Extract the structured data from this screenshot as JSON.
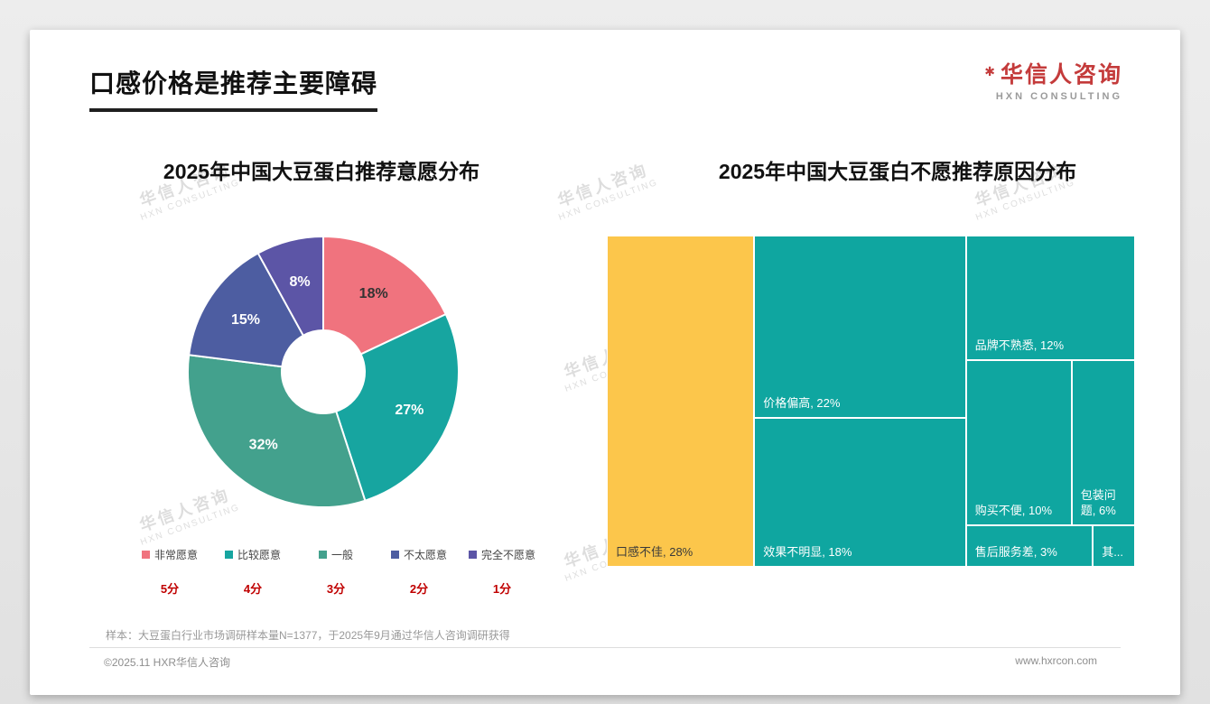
{
  "page": {
    "title": "口感价格是推荐主要障碍",
    "logo": {
      "mark": "✱",
      "cn": "华信人咨询",
      "en": "HXN CONSULTING"
    },
    "watermark": {
      "line1": "华信人咨询",
      "line2": "HXN CONSULTING"
    },
    "footnote": "样本：大豆蛋白行业市场调研样本量N=1377，于2025年9月通过华信人咨询调研获得",
    "footer": {
      "left": "©2025.11 HXR华信人咨询",
      "right": "www.hxrcon.com"
    }
  },
  "colors": {
    "accent_red": "#C00000",
    "logo_red": "#C43B3B",
    "title_underline": "#1F1F1F",
    "page_bg": "#E7E7E7",
    "card_bg": "#FFFFFF",
    "treemap_teal": "#0FA6A0",
    "treemap_yellow": "#FCC64B",
    "muted_text": "#8E8E8E"
  },
  "chart_data": [
    {
      "type": "pie",
      "subtype": "donut",
      "title": "2025年中国大豆蛋白推荐意愿分布",
      "categories": [
        "非常愿意",
        "比较愿意",
        "一般",
        "不太愿意",
        "完全不愿意"
      ],
      "values": [
        18,
        27,
        32,
        15,
        8
      ],
      "value_labels": [
        "18%",
        "27%",
        "32%",
        "15%",
        "8%"
      ],
      "slice_colors": [
        "#F0737E",
        "#17A5A0",
        "#43A18D",
        "#4D5DA1",
        "#5C55A6"
      ],
      "value_label_colors": [
        "#333333",
        "#ffffff",
        "#ffffff",
        "#ffffff",
        "#ffffff"
      ],
      "score_labels": [
        "5分",
        "4分",
        "3分",
        "2分",
        "1分"
      ],
      "legend_position": "bottom",
      "start_angle_deg": -90,
      "direction": "clockwise"
    },
    {
      "type": "treemap",
      "title": "2025年中国大豆蛋白不愿推荐原因分布",
      "cells": [
        {
          "id": "taste",
          "name": "口感不佳",
          "label": "口感不佳, 28%",
          "value": 28,
          "color": "#FCC64B",
          "text_color": "#3A3A3A",
          "x": 0,
          "y": 0,
          "w": 27.9,
          "h": 100
        },
        {
          "id": "price",
          "name": "价格偏高",
          "label": "价格偏高, 22%",
          "value": 22,
          "color": "#0FA6A0",
          "text_color": "#FFFFFF",
          "x": 27.9,
          "y": 0,
          "w": 40.1,
          "h": 55
        },
        {
          "id": "effect",
          "name": "效果不明显",
          "label": "效果不明显, 18%",
          "value": 18,
          "color": "#0FA6A0",
          "text_color": "#FFFFFF",
          "x": 27.9,
          "y": 55,
          "w": 40.1,
          "h": 45
        },
        {
          "id": "brand",
          "name": "品牌不熟悉",
          "label": "品牌不熟悉, 12%",
          "value": 12,
          "color": "#0FA6A0",
          "text_color": "#FFFFFF",
          "x": 68,
          "y": 0,
          "w": 32,
          "h": 37.5
        },
        {
          "id": "purchase",
          "name": "购买不便",
          "label": "购买不便, 10%",
          "value": 10,
          "color": "#0FA6A0",
          "text_color": "#FFFFFF",
          "x": 68,
          "y": 37.5,
          "w": 20,
          "h": 50
        },
        {
          "id": "packaging",
          "name": "包装问题",
          "label": "包装问题, 6%",
          "value": 6,
          "color": "#0FA6A0",
          "text_color": "#FFFFFF",
          "x": 88,
          "y": 37.5,
          "w": 12,
          "h": 50
        },
        {
          "id": "aftersales",
          "name": "售后服务差",
          "label": "售后服务差, 3%",
          "value": 3,
          "color": "#0FA6A0",
          "text_color": "#FFFFFF",
          "x": 68,
          "y": 87.5,
          "w": 24,
          "h": 12.5
        },
        {
          "id": "other",
          "name": "其他",
          "label": "其...",
          "value": 1,
          "color": "#0FA6A0",
          "text_color": "#FFFFFF",
          "x": 92,
          "y": 87.5,
          "w": 8,
          "h": 12.5
        }
      ]
    }
  ]
}
